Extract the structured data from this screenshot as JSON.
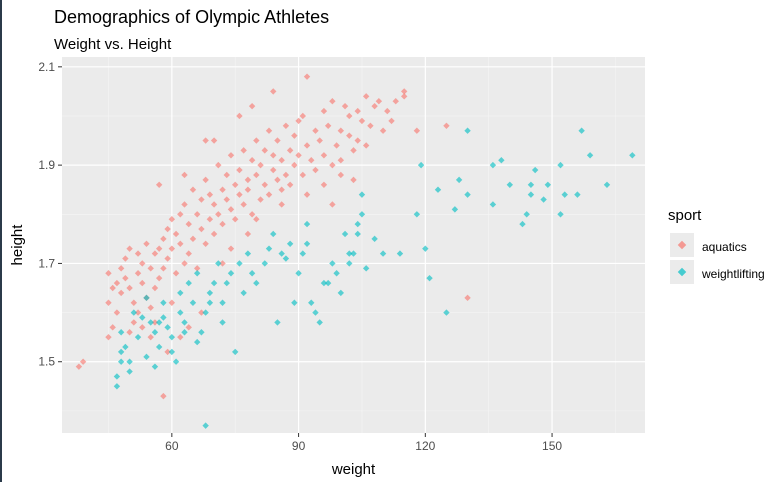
{
  "chart_data": {
    "type": "scatter",
    "title": "Demographics of Olympic Athletes",
    "subtitle": "Weight vs. Height",
    "xlabel": "weight",
    "ylabel": "height",
    "xlim": [
      34,
      172
    ],
    "ylim": [
      1.355,
      2.12
    ],
    "xticks": [
      60,
      90,
      120,
      150
    ],
    "xtick_labels": [
      "60",
      "90",
      "120",
      "150"
    ],
    "yticks": [
      1.5,
      1.7,
      1.9,
      2.1
    ],
    "ytick_labels": [
      "1.5",
      "1.7",
      "1.9",
      "2.1"
    ],
    "grid": true,
    "legend": {
      "title": "sport",
      "position": "right"
    },
    "series": [
      {
        "name": "aquatics",
        "color": "#F8766D",
        "points": [
          [
            38,
            1.49
          ],
          [
            39,
            1.5
          ],
          [
            45,
            1.55
          ],
          [
            45,
            1.62
          ],
          [
            46,
            1.57
          ],
          [
            47,
            1.6
          ],
          [
            46,
            1.65
          ],
          [
            48,
            1.64
          ],
          [
            47,
            1.66
          ],
          [
            45,
            1.68
          ],
          [
            48,
            1.69
          ],
          [
            49,
            1.67
          ],
          [
            49,
            1.71
          ],
          [
            50,
            1.73
          ],
          [
            50,
            1.65
          ],
          [
            51,
            1.62
          ],
          [
            52,
            1.6
          ],
          [
            51,
            1.58
          ],
          [
            52,
            1.68
          ],
          [
            53,
            1.7
          ],
          [
            52,
            1.72
          ],
          [
            54,
            1.74
          ],
          [
            53,
            1.66
          ],
          [
            54,
            1.63
          ],
          [
            55,
            1.61
          ],
          [
            56,
            1.58
          ],
          [
            56,
            1.65
          ],
          [
            55,
            1.69
          ],
          [
            57,
            1.73
          ],
          [
            57,
            1.67
          ],
          [
            56,
            1.72
          ],
          [
            58,
            1.75
          ],
          [
            58,
            1.69
          ],
          [
            59,
            1.77
          ],
          [
            59,
            1.71
          ],
          [
            60,
            1.79
          ],
          [
            60,
            1.73
          ],
          [
            61,
            1.68
          ],
          [
            61,
            1.76
          ],
          [
            62,
            1.8
          ],
          [
            62,
            1.74
          ],
          [
            63,
            1.82
          ],
          [
            63,
            1.7
          ],
          [
            64,
            1.72
          ],
          [
            64,
            1.78
          ],
          [
            65,
            1.85
          ],
          [
            65,
            1.75
          ],
          [
            66,
            1.8
          ],
          [
            66,
            1.69
          ],
          [
            67,
            1.83
          ],
          [
            67,
            1.77
          ],
          [
            68,
            1.74
          ],
          [
            68,
            1.87
          ],
          [
            69,
            1.79
          ],
          [
            69,
            1.84
          ],
          [
            70,
            1.82
          ],
          [
            70,
            1.76
          ],
          [
            71,
            1.9
          ],
          [
            71,
            1.8
          ],
          [
            72,
            1.85
          ],
          [
            72,
            1.78
          ],
          [
            73,
            1.88
          ],
          [
            73,
            1.83
          ],
          [
            74,
            1.92
          ],
          [
            74,
            1.81
          ],
          [
            75,
            1.86
          ],
          [
            75,
            1.79
          ],
          [
            76,
            1.89
          ],
          [
            76,
            1.84
          ],
          [
            77,
            1.82
          ],
          [
            77,
            1.93
          ],
          [
            78,
            1.87
          ],
          [
            78,
            1.85
          ],
          [
            79,
            1.91
          ],
          [
            79,
            1.8
          ],
          [
            80,
            1.88
          ],
          [
            80,
            1.95
          ],
          [
            81,
            1.83
          ],
          [
            81,
            1.9
          ],
          [
            82,
            1.86
          ],
          [
            82,
            1.93
          ],
          [
            83,
            1.97
          ],
          [
            83,
            1.84
          ],
          [
            84,
            1.89
          ],
          [
            84,
            1.92
          ],
          [
            85,
            1.87
          ],
          [
            85,
            1.95
          ],
          [
            86,
            1.91
          ],
          [
            86,
            1.85
          ],
          [
            87,
            1.98
          ],
          [
            87,
            1.88
          ],
          [
            88,
            1.93
          ],
          [
            88,
            1.86
          ],
          [
            89,
            1.96
          ],
          [
            89,
            1.9
          ],
          [
            90,
            1.92
          ],
          [
            90,
            1.99
          ],
          [
            91,
            1.88
          ],
          [
            91,
            2.0
          ],
          [
            92,
            1.94
          ],
          [
            92,
            2.08
          ],
          [
            93,
            1.91
          ],
          [
            94,
            1.97
          ],
          [
            94,
            1.89
          ],
          [
            95,
            1.95
          ],
          [
            96,
            1.92
          ],
          [
            96,
            2.01
          ],
          [
            97,
            1.98
          ],
          [
            98,
            1.9
          ],
          [
            98,
            2.03
          ],
          [
            99,
            1.94
          ],
          [
            100,
            1.97
          ],
          [
            100,
            1.91
          ],
          [
            101,
            2.02
          ],
          [
            102,
            1.96
          ],
          [
            102,
            2.0
          ],
          [
            103,
            1.93
          ],
          [
            104,
            2.01
          ],
          [
            104,
            1.95
          ],
          [
            105,
            1.99
          ],
          [
            106,
            2.04
          ],
          [
            106,
            1.94
          ],
          [
            107,
            1.98
          ],
          [
            108,
            2.02
          ],
          [
            109,
            2.03
          ],
          [
            110,
            1.97
          ],
          [
            111,
            2.01
          ],
          [
            112,
            1.99
          ],
          [
            113,
            2.03
          ],
          [
            115,
            2.04
          ],
          [
            115,
            2.05
          ],
          [
            118,
            1.97
          ],
          [
            125,
            1.98
          ],
          [
            130,
            1.63
          ],
          [
            57,
            1.86
          ],
          [
            63,
            1.88
          ],
          [
            68,
            1.95
          ],
          [
            70,
            1.95
          ],
          [
            76,
            2.0
          ],
          [
            79,
            2.02
          ],
          [
            84,
            2.05
          ],
          [
            58,
            1.43
          ],
          [
            59,
            1.52
          ],
          [
            64,
            1.57
          ],
          [
            62,
            1.55
          ],
          [
            67,
            1.6
          ],
          [
            55,
            1.55
          ],
          [
            60,
            1.62
          ],
          [
            53,
            1.57
          ],
          [
            50,
            1.56
          ],
          [
            74,
            1.73
          ],
          [
            78,
            1.76
          ],
          [
            72,
            1.7
          ],
          [
            80,
            1.79
          ],
          [
            86,
            1.82
          ],
          [
            92,
            1.84
          ],
          [
            96,
            1.86
          ],
          [
            100,
            1.88
          ],
          [
            103,
            1.87
          ],
          [
            98,
            1.82
          ]
        ]
      },
      {
        "name": "weightlifting",
        "color": "#00BFC4",
        "points": [
          [
            47,
            1.45
          ],
          [
            47,
            1.47
          ],
          [
            48,
            1.5
          ],
          [
            48,
            1.52
          ],
          [
            48,
            1.56
          ],
          [
            50,
            1.48
          ],
          [
            52,
            1.55
          ],
          [
            53,
            1.59
          ],
          [
            54,
            1.51
          ],
          [
            55,
            1.58
          ],
          [
            56,
            1.49
          ],
          [
            56,
            1.56
          ],
          [
            57,
            1.53
          ],
          [
            58,
            1.62
          ],
          [
            59,
            1.57
          ],
          [
            60,
            1.55
          ],
          [
            61,
            1.5
          ],
          [
            62,
            1.6
          ],
          [
            63,
            1.58
          ],
          [
            64,
            1.66
          ],
          [
            65,
            1.62
          ],
          [
            66,
            1.68
          ],
          [
            67,
            1.56
          ],
          [
            68,
            1.6
          ],
          [
            68,
            1.37
          ],
          [
            69,
            1.64
          ],
          [
            70,
            1.66
          ],
          [
            71,
            1.7
          ],
          [
            72,
            1.62
          ],
          [
            73,
            1.66
          ],
          [
            74,
            1.68
          ],
          [
            75,
            1.52
          ],
          [
            76,
            1.7
          ],
          [
            77,
            1.64
          ],
          [
            78,
            1.72
          ],
          [
            80,
            1.66
          ],
          [
            82,
            1.7
          ],
          [
            84,
            1.76
          ],
          [
            85,
            1.58
          ],
          [
            86,
            1.72
          ],
          [
            88,
            1.74
          ],
          [
            89,
            1.62
          ],
          [
            90,
            1.68
          ],
          [
            91,
            1.72
          ],
          [
            92,
            1.74
          ],
          [
            93,
            1.62
          ],
          [
            94,
            1.6
          ],
          [
            95,
            1.58
          ],
          [
            96,
            1.66
          ],
          [
            97,
            1.66
          ],
          [
            98,
            1.7
          ],
          [
            100,
            1.64
          ],
          [
            101,
            1.76
          ],
          [
            102,
            1.72
          ],
          [
            103,
            1.72
          ],
          [
            104,
            1.76
          ],
          [
            104,
            1.78
          ],
          [
            105,
            1.8
          ],
          [
            105,
            1.84
          ],
          [
            106,
            1.69
          ],
          [
            108,
            1.75
          ],
          [
            110,
            1.72
          ],
          [
            114,
            1.72
          ],
          [
            118,
            1.8
          ],
          [
            119,
            1.9
          ],
          [
            120,
            1.73
          ],
          [
            121,
            1.67
          ],
          [
            123,
            1.85
          ],
          [
            125,
            1.6
          ],
          [
            127,
            1.81
          ],
          [
            128,
            1.87
          ],
          [
            130,
            1.84
          ],
          [
            130,
            1.97
          ],
          [
            136,
            1.82
          ],
          [
            136,
            1.9
          ],
          [
            138,
            1.91
          ],
          [
            140,
            1.86
          ],
          [
            143,
            1.78
          ],
          [
            144,
            1.8
          ],
          [
            145,
            1.84
          ],
          [
            145,
            1.86
          ],
          [
            146,
            1.89
          ],
          [
            148,
            1.83
          ],
          [
            149,
            1.86
          ],
          [
            152,
            1.8
          ],
          [
            153,
            1.84
          ],
          [
            152,
            1.9
          ],
          [
            156,
            1.84
          ],
          [
            157,
            1.97
          ],
          [
            159,
            1.92
          ],
          [
            163,
            1.86
          ],
          [
            169,
            1.92
          ],
          [
            49,
            1.53
          ],
          [
            51,
            1.6
          ],
          [
            54,
            1.63
          ],
          [
            57,
            1.58
          ],
          [
            60,
            1.52
          ],
          [
            63,
            1.56
          ],
          [
            66,
            1.54
          ],
          [
            69,
            1.62
          ],
          [
            72,
            1.58
          ],
          [
            79,
            1.68
          ],
          [
            83,
            1.73
          ],
          [
            87,
            1.71
          ],
          [
            92,
            1.78
          ],
          [
            99,
            1.68
          ],
          [
            102,
            1.7
          ],
          [
            50,
            1.5
          ],
          [
            58,
            1.59
          ],
          [
            62,
            1.64
          ]
        ]
      }
    ]
  }
}
